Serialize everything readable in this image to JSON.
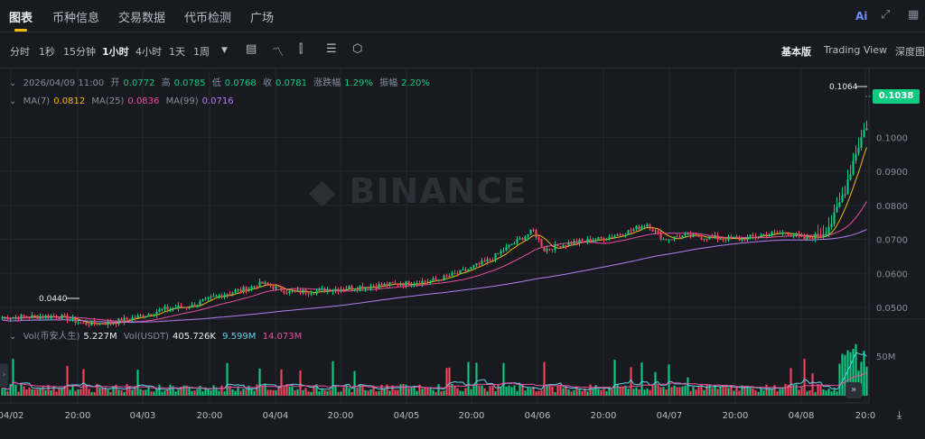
{
  "nav": {
    "tabs": [
      "图表",
      "币种信息",
      "交易数据",
      "代币检测",
      "广场"
    ],
    "ai_label": "Ai"
  },
  "toolbar": {
    "timeframes": [
      "分时",
      "1秒",
      "15分钟",
      "1小时",
      "4小时",
      "1天",
      "1周"
    ],
    "active_timeframe": "1小时",
    "views": [
      "基本版",
      "Trading View",
      "深度图"
    ],
    "active_view": "基本版"
  },
  "ohlc": {
    "datetime": "2026/04/09 11:00",
    "open_label": "开",
    "open": "0.0772",
    "high_label": "高",
    "high": "0.0785",
    "low_label": "低",
    "low": "0.0768",
    "close_label": "收",
    "close": "0.0781",
    "change_label": "涨跌幅",
    "change": "1.29%",
    "amplitude_label": "振幅",
    "amplitude": "2.20%"
  },
  "ma": {
    "ma7_label": "MA(7)",
    "ma7": "0.0812",
    "ma25_label": "MA(25)",
    "ma25": "0.0836",
    "ma99_label": "MA(99)",
    "ma99": "0.0716"
  },
  "vol": {
    "label1": "Vol(币安人生)",
    "value1": "5.227M",
    "label2": "Vol(USDT)",
    "value2": "405.726K",
    "ma1": "9.599M",
    "ma2": "14.073M",
    "axis_label": "50M"
  },
  "watermark": "BINANCE",
  "price_tag": "0.1038",
  "annotations": {
    "high": "0.1064",
    "low": "0.0440"
  },
  "colors": {
    "up": "#0ecb81",
    "down": "#f6465d",
    "ma7": "#f0b90b",
    "ma25": "#e84fa0",
    "ma99": "#b27ff0",
    "accent": "#f0b90b"
  },
  "chart_data": {
    "type": "candlestick",
    "y_ticks": [
      "0.1000",
      "0.0900",
      "0.0800",
      "0.0700",
      "0.0600",
      "0.0500"
    ],
    "y_range": [
      0.042,
      0.106
    ],
    "x_ticks": [
      "04/02",
      "20:00",
      "04/03",
      "20:00",
      "04/04",
      "20:00",
      "04/05",
      "20:00",
      "04/06",
      "20:00",
      "04/07",
      "20:00",
      "04/08",
      "20:0"
    ],
    "close_keypoints": [
      [
        0,
        0.047
      ],
      [
        20,
        0.0475
      ],
      [
        25,
        0.0465
      ],
      [
        30,
        0.0452
      ],
      [
        40,
        0.0455
      ],
      [
        50,
        0.0472
      ],
      [
        60,
        0.0495
      ],
      [
        70,
        0.0505
      ],
      [
        80,
        0.0535
      ],
      [
        90,
        0.0555
      ],
      [
        96,
        0.057
      ],
      [
        106,
        0.0545
      ],
      [
        116,
        0.0548
      ],
      [
        130,
        0.056
      ],
      [
        140,
        0.0565
      ],
      [
        150,
        0.0572
      ],
      [
        160,
        0.058
      ],
      [
        170,
        0.0605
      ],
      [
        180,
        0.064
      ],
      [
        188,
        0.0685
      ],
      [
        196,
        0.0725
      ],
      [
        200,
        0.067
      ],
      [
        210,
        0.069
      ],
      [
        220,
        0.07
      ],
      [
        230,
        0.072
      ],
      [
        238,
        0.0745
      ],
      [
        244,
        0.07
      ],
      [
        252,
        0.071
      ],
      [
        262,
        0.0705
      ],
      [
        272,
        0.07
      ],
      [
        282,
        0.0715
      ],
      [
        290,
        0.072
      ],
      [
        296,
        0.07
      ],
      [
        302,
        0.0715
      ],
      [
        307,
        0.076
      ],
      [
        311,
        0.085
      ],
      [
        315,
        0.096
      ],
      [
        319,
        0.1038
      ]
    ]
  }
}
